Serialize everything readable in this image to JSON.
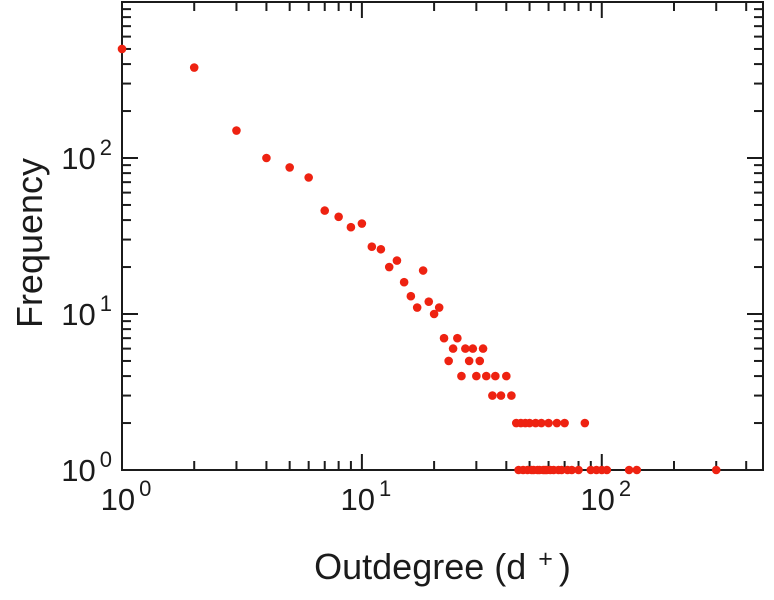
{
  "figure": {
    "background": "#ffffff",
    "frame_color": "#1b1b1b",
    "text_color": "#1b1b1b"
  },
  "labels": {
    "y_axis": "Frequency",
    "x_axis_prefix": "Outdegree (d",
    "x_axis_sup": "+",
    "x_axis_suffix": ")",
    "tick_base": "10",
    "x_tick_exponents": [
      "0",
      "1",
      "2"
    ],
    "y_tick_exponents": [
      "0",
      "1",
      "2"
    ]
  },
  "chart_data": {
    "type": "scatter",
    "title": "",
    "xlabel": "Outdegree (d+)",
    "ylabel": "Frequency",
    "x_scale": "log",
    "y_scale": "log",
    "xlim": [
      1,
      470
    ],
    "ylim": [
      1,
      1000
    ],
    "grid": false,
    "legend": "none",
    "marker": {
      "shape": "circle",
      "color": "#ee2211",
      "radius": 4.3
    },
    "points": [
      [
        1,
        500
      ],
      [
        2,
        380
      ],
      [
        3,
        150
      ],
      [
        4,
        100
      ],
      [
        5,
        87
      ],
      [
        6,
        75
      ],
      [
        7,
        46
      ],
      [
        8,
        42
      ],
      [
        9,
        36
      ],
      [
        10,
        38
      ],
      [
        11,
        27
      ],
      [
        12,
        26
      ],
      [
        13,
        20
      ],
      [
        14,
        22
      ],
      [
        15,
        16
      ],
      [
        16,
        13
      ],
      [
        17,
        11
      ],
      [
        18,
        19
      ],
      [
        19,
        12
      ],
      [
        20,
        10
      ],
      [
        21,
        11
      ],
      [
        22,
        7
      ],
      [
        23,
        5
      ],
      [
        24,
        6
      ],
      [
        25,
        7
      ],
      [
        26,
        4
      ],
      [
        27,
        6
      ],
      [
        28,
        5
      ],
      [
        29,
        6
      ],
      [
        30,
        4
      ],
      [
        31,
        5
      ],
      [
        32,
        6
      ],
      [
        33,
        4
      ],
      [
        35,
        3
      ],
      [
        36,
        4
      ],
      [
        38,
        3
      ],
      [
        40,
        4
      ],
      [
        42,
        3
      ],
      [
        44,
        2
      ],
      [
        46,
        2
      ],
      [
        48,
        2
      ],
      [
        50,
        2
      ],
      [
        53,
        2
      ],
      [
        56,
        2
      ],
      [
        60,
        2
      ],
      [
        65,
        2
      ],
      [
        70,
        2
      ],
      [
        85,
        2
      ],
      [
        45,
        1
      ],
      [
        47,
        1
      ],
      [
        49,
        1
      ],
      [
        51,
        1
      ],
      [
        52,
        1
      ],
      [
        54,
        1
      ],
      [
        55,
        1
      ],
      [
        57,
        1
      ],
      [
        58,
        1
      ],
      [
        59,
        1
      ],
      [
        61,
        1
      ],
      [
        63,
        1
      ],
      [
        66,
        1
      ],
      [
        68,
        1
      ],
      [
        72,
        1
      ],
      [
        75,
        1
      ],
      [
        80,
        1
      ],
      [
        90,
        1
      ],
      [
        95,
        1
      ],
      [
        100,
        1
      ],
      [
        105,
        1
      ],
      [
        130,
        1
      ],
      [
        140,
        1
      ],
      [
        300,
        1
      ]
    ]
  }
}
